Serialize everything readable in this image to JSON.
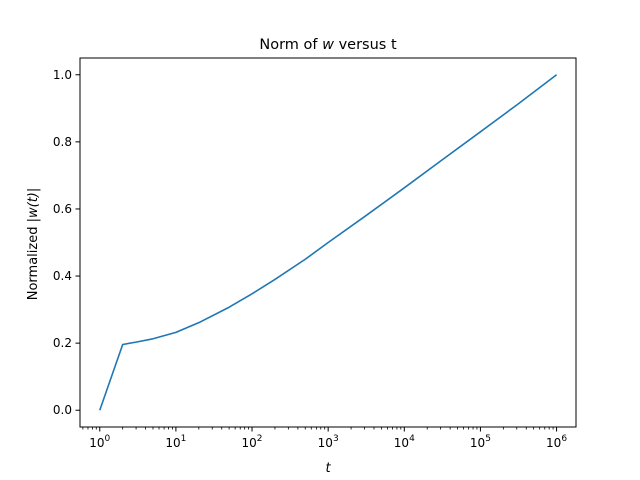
{
  "chart_data": {
    "type": "line",
    "title_pre": "Norm of ",
    "title_var": "w",
    "title_post": " versus t",
    "xlabel": "t",
    "ylabel_pre": "Normalized |",
    "ylabel_var": "w(t)",
    "ylabel_post": "|",
    "x_scale": "log",
    "xlim": [
      0.55,
      1800000
    ],
    "ylim": [
      -0.05,
      1.05
    ],
    "x_ticks": [
      {
        "value": 1,
        "base": "10",
        "exp": "0"
      },
      {
        "value": 10,
        "base": "10",
        "exp": "1"
      },
      {
        "value": 100,
        "base": "10",
        "exp": "2"
      },
      {
        "value": 1000,
        "base": "10",
        "exp": "3"
      },
      {
        "value": 10000,
        "base": "10",
        "exp": "4"
      },
      {
        "value": 100000,
        "base": "10",
        "exp": "5"
      },
      {
        "value": 1000000,
        "base": "10",
        "exp": "6"
      }
    ],
    "y_ticks": [
      {
        "value": 0.0,
        "label": "0.0"
      },
      {
        "value": 0.2,
        "label": "0.2"
      },
      {
        "value": 0.4,
        "label": "0.4"
      },
      {
        "value": 0.6,
        "label": "0.6"
      },
      {
        "value": 0.8,
        "label": "0.8"
      },
      {
        "value": 1.0,
        "label": "1.0"
      }
    ],
    "grid": false,
    "line_color": "#1f77b4",
    "series": [
      {
        "x": [
          1,
          2,
          3,
          5,
          10,
          20,
          50,
          100,
          200,
          500,
          1000,
          3000,
          10000,
          30000,
          100000,
          300000,
          1000000
        ],
        "y": [
          0.0,
          0.196,
          0.203,
          0.213,
          0.232,
          0.261,
          0.307,
          0.347,
          0.39,
          0.45,
          0.5,
          0.577,
          0.663,
          0.743,
          0.83,
          0.91,
          1.0
        ]
      }
    ]
  }
}
